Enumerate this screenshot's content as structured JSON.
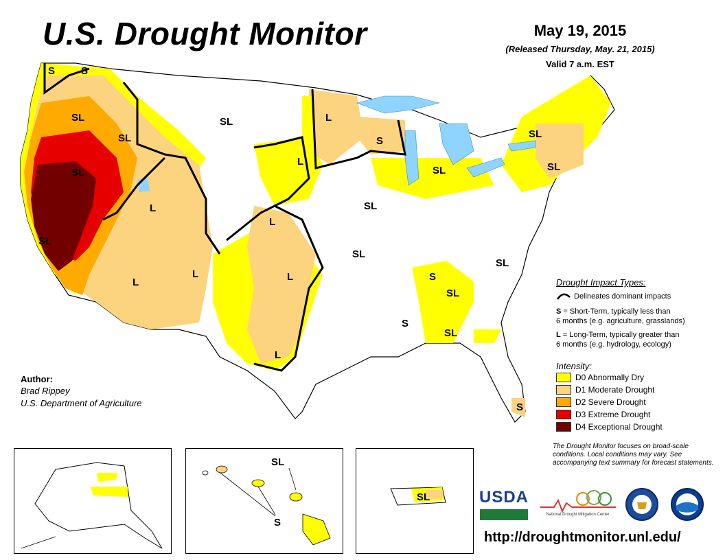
{
  "header": {
    "title": "U.S. Drought Monitor",
    "date": "May 19, 2015",
    "released": "(Released Thursday, May. 21, 2015)",
    "valid": "Valid 7 a.m. EST"
  },
  "impact_legend": {
    "title": "Drought Impact Types:",
    "delineates": "Delineates dominant impacts",
    "short_term_key": "S",
    "short_term_text": "= Short-Term, typically less than",
    "short_term_text2": "6 months (e.g. agriculture, grasslands)",
    "long_term_key": "L",
    "long_term_text": "= Long-Term, typically greater than",
    "long_term_text2": "6 months (e.g. hydrology, ecology)"
  },
  "intensity_legend": {
    "title": "Intensity:",
    "items": [
      {
        "label": "D0 Abnormally Dry",
        "color": "#ffff00"
      },
      {
        "label": "D1 Moderate Drought",
        "color": "#fcd37f"
      },
      {
        "label": "D2 Severe Drought",
        "color": "#ffaa00"
      },
      {
        "label": "D3 Extreme Drought",
        "color": "#e60000"
      },
      {
        "label": "D4 Exceptional Drought",
        "color": "#730000"
      }
    ]
  },
  "author": {
    "heading": "Author:",
    "name": "Brad Rippey",
    "org": "U.S. Department of Agriculture"
  },
  "footnote": "The Drought Monitor focuses on broad-scale conditions. Local conditions may vary. See accompanying text summary for forecast statements.",
  "url": "http://droughtmonitor.unl.edu/",
  "logos": {
    "usda": "USDA",
    "ndmc": "National Drought Mitigation Center"
  },
  "map_labels": {
    "wa_s": "S",
    "wa_s2": "S",
    "or_sl": "SL",
    "id_sl": "SL",
    "nv_sl": "SL",
    "ca_sl": "SL",
    "ut_l": "L",
    "az_l": "L",
    "nm_l": "L",
    "mt_sl": "SL",
    "mn_l": "L",
    "sd_l": "L",
    "wi_s": "S",
    "mi_sl": "SL",
    "ne_l": "L",
    "ia_sl": "SL",
    "mo_sl": "SL",
    "ok_l": "L",
    "tx_l": "L",
    "tn_s": "S",
    "nc_sl": "SL",
    "ga_sl": "SL",
    "al_s": "S",
    "ga2_sl": "SL",
    "fl_s": "S",
    "nh_sl": "SL",
    "ny_sl": "SL",
    "hi_sl": "SL",
    "hi_s": "S",
    "pr_sl": "SL"
  },
  "colors": {
    "d0": "#ffff00",
    "d1": "#fcd37f",
    "d2": "#ffaa00",
    "d3": "#e60000",
    "d4": "#730000",
    "water": "#8fd3ff",
    "border": "#000000"
  }
}
